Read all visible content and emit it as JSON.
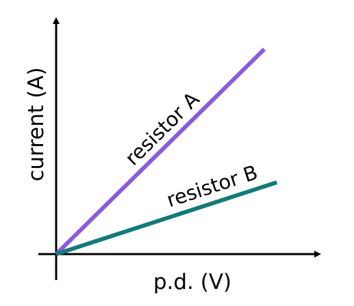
{
  "chart_data": {
    "type": "line",
    "title": "",
    "xlabel": "p.d. (V)",
    "ylabel": "current (A)",
    "grid": false,
    "legend": "none",
    "series": [
      {
        "name": "resistor A",
        "color": "#8a5cdb",
        "x": [
          0,
          1
        ],
        "y": [
          0,
          1
        ]
      },
      {
        "name": "resistor B",
        "color": "#137a78",
        "x": [
          0,
          1.06
        ],
        "y": [
          0,
          0.35
        ]
      }
    ],
    "xlim": [
      0,
      1.24
    ],
    "ylim": [
      0,
      1.08
    ]
  }
}
